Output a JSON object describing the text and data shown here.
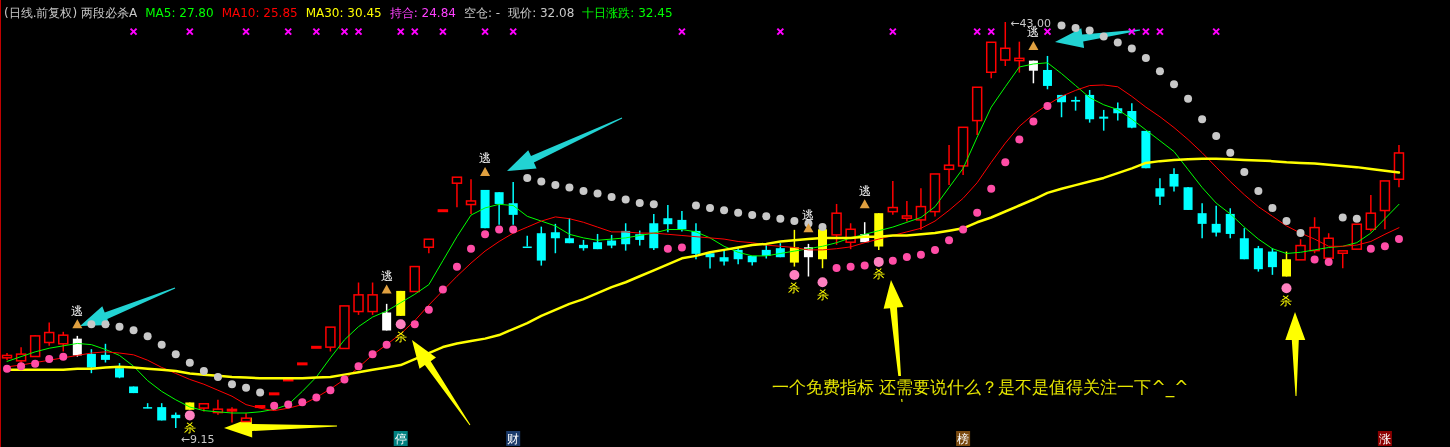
{
  "chart_data": {
    "type": "candlestick",
    "title": "(日线.前复权) 两段必杀A",
    "legend": "top left",
    "tick_labels": "x",
    "categories": [
      null,
      null,
      null,
      null,
      null,
      null,
      null,
      null,
      null,
      null,
      null,
      null,
      null,
      null,
      null,
      null,
      null,
      null,
      null,
      null,
      null,
      null,
      null,
      null,
      null,
      null,
      null,
      null,
      "停",
      null,
      null,
      null,
      null,
      null,
      null,
      null,
      "财",
      null,
      null,
      null,
      null,
      null,
      null,
      null,
      null,
      null,
      null,
      null,
      null,
      null,
      null,
      null,
      null,
      null,
      null,
      null,
      null,
      null,
      null,
      null,
      null,
      null,
      null,
      null,
      null,
      null,
      null,
      null,
      "榜",
      null,
      null,
      null,
      null,
      null,
      null,
      null,
      null,
      null,
      null,
      null,
      null,
      null,
      null,
      null,
      null,
      null,
      null,
      null,
      null,
      null,
      null,
      null,
      null,
      null,
      null,
      null,
      null,
      null,
      "涨",
      null
    ],
    "ohlc": [
      [
        15.0,
        15.4,
        14.8,
        15.2
      ],
      [
        14.75,
        15.89,
        14.56,
        15.31
      ],
      [
        15.11,
        16.9,
        15.1,
        16.83
      ],
      [
        16.28,
        17.94,
        16.0,
        17.11
      ],
      [
        16.17,
        17.17,
        15.53,
        16.89
      ],
      [
        16.6,
        16.83,
        15.1,
        15.2
      ],
      [
        15.33,
        15.72,
        13.72,
        14.19
      ],
      [
        15.25,
        16.17,
        14.61,
        14.83
      ],
      [
        14.14,
        14.56,
        13.3,
        13.36
      ],
      [
        12.61,
        12.61,
        12.06,
        12.06
      ],
      [
        10.89,
        11.22,
        10.8,
        10.8
      ],
      [
        10.89,
        11.22,
        9.78,
        9.78
      ],
      [
        10.25,
        10.44,
        9.15,
        9.97
      ],
      [
        11.28,
        11.28,
        10.67,
        10.67
      ],
      [
        10.81,
        11.17,
        10.53,
        11.17
      ],
      [
        10.44,
        11.5,
        10.25,
        10.72
      ],
      [
        10.6,
        10.89,
        9.61,
        10.7
      ],
      [
        9.69,
        10.39,
        9.69,
        9.97
      ],
      [
        10.98,
        11.0,
        10.98,
        11.0
      ],
      [
        12.04,
        12.06,
        12.04,
        12.06
      ],
      [
        13.2,
        13.22,
        13.2,
        13.22
      ],
      [
        14.54,
        14.56,
        14.54,
        14.56
      ],
      [
        15.92,
        15.94,
        15.92,
        15.94
      ],
      [
        15.89,
        17.56,
        15.53,
        17.56
      ],
      [
        15.78,
        19.33,
        15.78,
        19.33
      ],
      [
        18.86,
        21.28,
        18.58,
        20.25
      ],
      [
        18.86,
        21.28,
        18.58,
        20.25
      ],
      [
        18.78,
        19.5,
        17.28,
        17.28
      ],
      [
        20.58,
        20.58,
        18.5,
        18.5
      ],
      [
        20.53,
        22.61,
        20.53,
        22.61
      ],
      [
        24.22,
        24.89,
        23.72,
        24.89
      ],
      [
        27.31,
        27.33,
        27.31,
        27.33
      ],
      [
        29.56,
        30.06,
        27.56,
        30.06
      ],
      [
        27.78,
        29.89,
        27.0,
        28.08
      ],
      [
        29.0,
        29.0,
        25.81,
        25.81
      ],
      [
        28.81,
        28.81,
        26.1,
        27.83
      ],
      [
        27.89,
        29.67,
        26.1,
        26.92
      ],
      [
        24.28,
        25.17,
        24.28,
        24.28
      ],
      [
        25.39,
        25.94,
        22.69,
        23.11
      ],
      [
        25.47,
        26.17,
        23.72,
        24.97
      ],
      [
        24.97,
        26.64,
        24.56,
        24.56
      ],
      [
        24.42,
        24.83,
        23.94,
        24.14
      ],
      [
        24.64,
        25.33,
        24.06,
        24.06
      ],
      [
        24.78,
        25.25,
        24.14,
        24.36
      ],
      [
        25.58,
        26.22,
        23.94,
        24.47
      ],
      [
        25.31,
        25.61,
        24.36,
        24.83
      ],
      [
        26.22,
        27.0,
        24.0,
        24.14
      ],
      [
        26.64,
        27.75,
        25.47,
        26.14
      ],
      [
        26.5,
        27.25,
        25.53,
        25.72
      ],
      [
        25.58,
        26.22,
        23.22,
        23.67
      ],
      [
        23.72,
        23.81,
        22.44,
        23.39
      ],
      [
        23.39,
        24.0,
        22.69,
        23.03
      ],
      [
        24.0,
        24.14,
        22.81,
        23.22
      ],
      [
        23.5,
        23.5,
        22.69,
        22.97
      ],
      [
        24.0,
        24.42,
        23.28,
        23.5
      ],
      [
        24.14,
        24.56,
        23.39,
        23.39
      ],
      [
        24.22,
        25.67,
        22.61,
        22.94
      ],
      [
        24.22,
        24.5,
        21.78,
        23.39
      ],
      [
        25.72,
        25.72,
        22.47,
        23.22
      ],
      [
        25.25,
        27.83,
        24.42,
        27.06
      ],
      [
        24.64,
        26.22,
        24.06,
        25.72
      ],
      [
        25.31,
        26.31,
        24.64,
        24.64
      ],
      [
        27.06,
        27.06,
        24.0,
        24.28
      ],
      [
        27.19,
        29.75,
        26.92,
        27.53
      ],
      [
        26.64,
        28.08,
        26.36,
        26.83
      ],
      [
        26.5,
        29.14,
        25.67,
        27.61
      ],
      [
        27.19,
        30.33,
        26.78,
        30.33
      ],
      [
        30.72,
        32.75,
        29.42,
        31.06
      ],
      [
        31.0,
        34.22,
        30.25,
        34.22
      ],
      [
        34.78,
        37.56,
        33.58,
        37.56
      ],
      [
        38.81,
        41.31,
        38.31,
        41.31
      ],
      [
        39.83,
        43.0,
        39.33,
        40.81
      ],
      [
        39.78,
        41.36,
        38.78,
        39.97
      ],
      [
        39.78,
        39.78,
        37.89,
        38.94
      ],
      [
        39.0,
        40.17,
        37.39,
        37.67
      ],
      [
        36.92,
        36.92,
        35.06,
        36.31
      ],
      [
        36.5,
        36.78,
        35.61,
        36.36
      ],
      [
        36.92,
        37.33,
        34.61,
        34.89
      ],
      [
        35.11,
        35.67,
        33.94,
        34.94
      ],
      [
        35.81,
        36.28,
        34.78,
        35.39
      ],
      [
        35.58,
        36.22,
        34.14,
        34.19
      ],
      [
        33.92,
        33.92,
        30.81,
        30.81
      ],
      [
        29.14,
        29.97,
        27.75,
        28.44
      ],
      [
        30.33,
        30.81,
        28.86,
        29.28
      ],
      [
        29.22,
        29.25,
        27.33,
        27.33
      ],
      [
        27.06,
        27.89,
        24.97,
        26.17
      ],
      [
        26.17,
        27.67,
        25.11,
        25.44
      ],
      [
        27.0,
        27.47,
        24.97,
        25.33
      ],
      [
        24.97,
        25.81,
        23.22,
        23.22
      ],
      [
        24.14,
        24.33,
        22.19,
        22.39
      ],
      [
        23.86,
        24.14,
        21.92,
        22.56
      ],
      [
        23.22,
        23.86,
        21.78,
        21.78
      ],
      [
        23.17,
        24.89,
        23.17,
        24.36
      ],
      [
        23.94,
        26.72,
        23.72,
        25.86
      ],
      [
        23.31,
        25.39,
        23.3,
        24.97
      ],
      [
        23.72,
        23.92,
        22.47,
        23.92
      ],
      [
        24.06,
        26.14,
        24.06,
        26.14
      ],
      [
        25.72,
        28.58,
        25.53,
        27.06
      ],
      [
        27.28,
        29.75,
        25.72,
        29.75
      ],
      [
        29.89,
        32.75,
        29.22,
        32.08
      ]
    ],
    "colors": [
      "#ff0000",
      "#ff0000",
      "#ff0000",
      "#ff0000",
      "#ff0000",
      "#ffffff",
      "#00ffff",
      "#00ffff",
      "#00ffff",
      "#00ffff",
      "#00ffff",
      "#00ffff",
      "#00ffff",
      "#ffff00",
      "#ff0000",
      "#ff0000",
      "#ff0000",
      "#ff0000",
      "#ff0000",
      "#ff0000",
      "#ff0000",
      "#ff0000",
      "#ff0000",
      "#ff0000",
      "#ff0000",
      "#ff0000",
      "#ff0000",
      "#ffffff",
      "#ffff00",
      "#ff0000",
      "#ff0000",
      "#ff0000",
      "#ff0000",
      "#ff0000",
      "#00ffff",
      "#00ffff",
      "#00ffff",
      "#00ffff",
      "#00ffff",
      "#00ffff",
      "#00ffff",
      "#00ffff",
      "#00ffff",
      "#00ffff",
      "#00ffff",
      "#00ffff",
      "#00ffff",
      "#00ffff",
      "#00ffff",
      "#00ffff",
      "#00ffff",
      "#00ffff",
      "#00ffff",
      "#00ffff",
      "#00ffff",
      "#00ffff",
      "#ffff00",
      "#ffffff",
      "#ffff00",
      "#ff0000",
      "#ff0000",
      "#ffffff",
      "#ffff00",
      "#ff0000",
      "#ff0000",
      "#ff0000",
      "#ff0000",
      "#ff0000",
      "#ff0000",
      "#ff0000",
      "#ff0000",
      "#ff0000",
      "#ff0000",
      "#ffffff",
      "#00ffff",
      "#00ffff",
      "#00ffff",
      "#00ffff",
      "#00ffff",
      "#00ffff",
      "#00ffff",
      "#00ffff",
      "#00ffff",
      "#00ffff",
      "#00ffff",
      "#00ffff",
      "#00ffff",
      "#00ffff",
      "#00ffff",
      "#00ffff",
      "#00ffff",
      "#ffff00",
      "#ff0000",
      "#ff0000",
      "#ff0000",
      "#ff0000",
      "#ff0000",
      "#ff0000",
      "#ff0000",
      "#ff0000"
    ],
    "series": [
      {
        "type": "line",
        "name": "MA5: 27.80",
        "color": "#00ff00",
        "values": [
          14.7,
          15.1,
          15.5,
          15.8,
          16.0,
          16.2,
          16.1,
          15.7,
          15.2,
          14.3,
          13.1,
          12.2,
          11.5,
          10.9,
          10.6,
          10.5,
          10.4,
          10.4,
          10.5,
          10.7,
          11.1,
          12.2,
          13.4,
          15.0,
          16.5,
          17.6,
          18.4,
          18.9,
          19.6,
          20.3,
          21.1,
          23.1,
          25.1,
          26.9,
          27.5,
          27.8,
          27.7,
          26.8,
          26.4,
          26.0,
          25.3,
          25.0,
          24.8,
          24.9,
          25.0,
          25.2,
          25.4,
          25.7,
          25.7,
          25.5,
          25.0,
          24.3,
          23.8,
          23.5,
          23.5,
          23.7,
          23.9,
          24.1,
          24.3,
          24.6,
          25.0,
          25.3,
          25.6,
          25.9,
          26.3,
          26.7,
          27.6,
          29.2,
          30.8,
          33.4,
          35.9,
          37.6,
          39.25,
          39.5,
          39.6,
          38.7,
          37.7,
          36.7,
          36.1,
          35.7,
          34.9,
          34.0,
          33.1,
          32.2,
          30.7,
          29.2,
          27.9,
          27.0,
          25.9,
          24.9,
          24.1,
          23.7,
          23.8,
          24.0,
          24.2,
          24.3,
          24.6,
          25.4,
          26.6,
          27.8
        ]
      },
      {
        "type": "line",
        "name": "MA10: 25.85",
        "color": "#ff0000",
        "values": [
          14.25,
          14.4,
          14.6,
          14.8,
          15.0,
          15.2,
          15.4,
          15.5,
          15.4,
          15.25,
          14.8,
          14.2,
          13.7,
          13.2,
          12.8,
          12.3,
          11.8,
          11.1,
          10.8,
          10.6,
          10.8,
          11.1,
          11.7,
          12.4,
          13.2,
          14.2,
          15.25,
          16.1,
          17.0,
          18.1,
          19.4,
          20.6,
          21.8,
          22.9,
          23.9,
          24.7,
          25.4,
          25.9,
          26.4,
          26.75,
          26.6,
          26.3,
          25.9,
          25.5,
          25.5,
          25.4,
          25.4,
          25.3,
          25.2,
          25.1,
          25.0,
          24.9,
          24.7,
          24.6,
          24.4,
          24.3,
          24.2,
          24.0,
          24.0,
          24.1,
          24.25,
          24.6,
          24.9,
          25.2,
          25.5,
          25.8,
          26.4,
          27.3,
          28.3,
          29.6,
          31.3,
          32.9,
          34.3,
          35.3,
          36.1,
          36.8,
          37.3,
          37.7,
          37.75,
          37.6,
          36.8,
          35.9,
          35.1,
          34.2,
          33.2,
          32.1,
          30.9,
          29.7,
          28.6,
          27.6,
          26.8,
          26.0,
          25.4,
          24.9,
          24.3,
          24.3,
          24.4,
          24.7,
          25.3,
          25.85
        ]
      },
      {
        "type": "line",
        "name": "MA30: 30.45",
        "color": "#ffff00",
        "values": [
          14.0,
          14.0,
          14.0,
          14.0,
          14.0,
          14.1,
          14.1,
          14.2,
          14.25,
          14.2,
          14.1,
          14.0,
          13.9,
          13.7,
          13.6,
          13.5,
          13.4,
          13.35,
          13.3,
          13.3,
          13.3,
          13.3,
          13.35,
          13.4,
          13.6,
          13.8,
          14.0,
          14.2,
          14.4,
          14.9,
          15.4,
          15.9,
          16.2,
          16.4,
          16.6,
          16.9,
          17.4,
          17.9,
          18.5,
          19.0,
          19.5,
          19.9,
          20.4,
          20.9,
          21.3,
          21.8,
          22.3,
          22.8,
          23.3,
          23.5,
          23.8,
          24.0,
          24.2,
          24.4,
          24.5,
          24.7,
          24.8,
          24.9,
          25.0,
          25.0,
          25.0,
          25.1,
          25.1,
          25.2,
          25.2,
          25.3,
          25.4,
          25.6,
          25.8,
          26.3,
          26.7,
          27.2,
          27.7,
          28.2,
          28.75,
          29.1,
          29.4,
          29.7,
          30.0,
          30.4,
          30.8,
          31.25,
          31.4,
          31.5,
          31.55,
          31.6,
          31.6,
          31.55,
          31.5,
          31.45,
          31.4,
          31.3,
          31.25,
          31.2,
          31.1,
          31.0,
          30.9,
          30.75,
          30.6,
          30.45
        ]
      },
      {
        "type": "scatter",
        "marker": "circle",
        "color": "#c8c8c8",
        "values": [
          null,
          null,
          null,
          null,
          null,
          null,
          17.8,
          17.8,
          17.6,
          17.3,
          16.8,
          16.1,
          15.3,
          14.6,
          13.9,
          13.4,
          12.8,
          12.5,
          12.1,
          null,
          null,
          null,
          null,
          null,
          null,
          null,
          null,
          null,
          null,
          null,
          null,
          null,
          null,
          null,
          null,
          null,
          null,
          30.0,
          29.7,
          29.4,
          29.2,
          28.9,
          28.7,
          28.4,
          28.2,
          27.9,
          27.8,
          null,
          null,
          27.7,
          27.5,
          27.3,
          27.1,
          26.9,
          26.8,
          26.6,
          26.4,
          26.2,
          25.9,
          null,
          null,
          null,
          null,
          null,
          null,
          null,
          null,
          null,
          null,
          null,
          null,
          null,
          null,
          null,
          null,
          42.7,
          42.5,
          42.3,
          41.8,
          41.3,
          40.8,
          40.0,
          38.9,
          37.8,
          36.6,
          34.9,
          33.5,
          32.1,
          30.5,
          28.9,
          27.5,
          26.4,
          25.4,
          null,
          null,
          26.7,
          26.6,
          null,
          null,
          null
        ]
      },
      {
        "type": "scatter",
        "marker": "circle",
        "color": "#ff4da6",
        "values": [
          14.1,
          14.3,
          14.5,
          14.9,
          15.1,
          null,
          null,
          null,
          null,
          null,
          null,
          null,
          null,
          null,
          null,
          null,
          null,
          null,
          null,
          11.0,
          11.1,
          11.3,
          11.7,
          12.3,
          13.2,
          14.3,
          15.3,
          16.1,
          null,
          17.8,
          19.0,
          20.7,
          22.6,
          24.1,
          25.3,
          25.7,
          25.7,
          null,
          null,
          null,
          null,
          null,
          null,
          null,
          null,
          null,
          null,
          24.1,
          24.2,
          null,
          null,
          null,
          null,
          null,
          null,
          null,
          null,
          null,
          null,
          22.5,
          22.6,
          22.7,
          null,
          23.1,
          23.4,
          23.6,
          24.0,
          24.8,
          25.7,
          27.1,
          29.1,
          31.3,
          33.2,
          34.7,
          36.0,
          null,
          null,
          null,
          null,
          null,
          null,
          null,
          null,
          null,
          null,
          null,
          null,
          null,
          null,
          null,
          null,
          null,
          null,
          23.2,
          23.0,
          null,
          null,
          24.1,
          24.3,
          24.9
        ]
      },
      {
        "type": "scatter",
        "marker": "cross",
        "color": "#ff00ff",
        "values": [
          null,
          null,
          null,
          null,
          null,
          null,
          null,
          null,
          null,
          42.2,
          null,
          null,
          null,
          42.2,
          null,
          null,
          null,
          42.2,
          null,
          null,
          42.2,
          null,
          42.2,
          null,
          42.2,
          42.2,
          null,
          null,
          42.2,
          42.2,
          null,
          42.2,
          null,
          null,
          42.2,
          null,
          42.2,
          null,
          null,
          null,
          null,
          null,
          null,
          null,
          null,
          null,
          null,
          null,
          42.2,
          null,
          null,
          null,
          null,
          null,
          null,
          42.2,
          null,
          null,
          null,
          null,
          null,
          null,
          null,
          42.2,
          null,
          null,
          null,
          null,
          null,
          42.2,
          42.2,
          null,
          null,
          null,
          42.2,
          null,
          null,
          null,
          null,
          null,
          42.2,
          42.2,
          42.2,
          null,
          null,
          null,
          42.2,
          null,
          null,
          null,
          null,
          null,
          null,
          null,
          null,
          null,
          null,
          null,
          null,
          null
        ]
      },
      {
        "type": "scatter",
        "marker": "triangle",
        "color": "#e0a040",
        "values": [
          null,
          null,
          null,
          null,
          null,
          17.8,
          null,
          null,
          null,
          null,
          null,
          null,
          null,
          null,
          null,
          null,
          null,
          null,
          null,
          null,
          null,
          null,
          null,
          null,
          null,
          null,
          null,
          20.7,
          null,
          null,
          null,
          null,
          null,
          null,
          30.5,
          null,
          null,
          null,
          null,
          null,
          null,
          null,
          null,
          null,
          null,
          null,
          null,
          null,
          null,
          null,
          null,
          null,
          null,
          null,
          null,
          null,
          null,
          25.8,
          null,
          null,
          null,
          27.8,
          null,
          null,
          null,
          null,
          null,
          null,
          null,
          null,
          null,
          null,
          null,
          41.0,
          null,
          null,
          null,
          null,
          null,
          null,
          null,
          null,
          null,
          null,
          null,
          null,
          null,
          null,
          null,
          null,
          null,
          null,
          null,
          null,
          null,
          null,
          null,
          null,
          null,
          null
        ],
        "value_labels": [
          null,
          null,
          null,
          null,
          null,
          "逃",
          null,
          null,
          null,
          null,
          null,
          null,
          null,
          null,
          null,
          null,
          null,
          null,
          null,
          null,
          null,
          null,
          null,
          null,
          null,
          null,
          null,
          "逃",
          null,
          null,
          null,
          null,
          null,
          null,
          "逃",
          null,
          null,
          null,
          null,
          null,
          null,
          null,
          null,
          null,
          null,
          null,
          null,
          null,
          null,
          null,
          null,
          null,
          null,
          null,
          null,
          null,
          null,
          "逃",
          null,
          null,
          null,
          "逃",
          null,
          null,
          null,
          null,
          null,
          null,
          null,
          null,
          null,
          null,
          null,
          "逃",
          null,
          null,
          null,
          null,
          null,
          null,
          null,
          null,
          null,
          null,
          null,
          null,
          null,
          null,
          null,
          null,
          null,
          null,
          null,
          null,
          null,
          null,
          null,
          null,
          null,
          null
        ]
      },
      {
        "type": "scatter",
        "marker": "circle",
        "color": "#ff80c0",
        "values": [
          null,
          null,
          null,
          null,
          null,
          null,
          null,
          null,
          null,
          null,
          null,
          null,
          null,
          10.2,
          null,
          null,
          null,
          null,
          null,
          null,
          null,
          null,
          null,
          null,
          null,
          null,
          null,
          null,
          17.8,
          null,
          null,
          null,
          null,
          null,
          null,
          null,
          null,
          null,
          null,
          null,
          null,
          null,
          null,
          null,
          null,
          null,
          null,
          null,
          null,
          null,
          null,
          null,
          null,
          null,
          null,
          null,
          21.9,
          null,
          21.3,
          null,
          null,
          null,
          23.0,
          null,
          null,
          null,
          null,
          null,
          null,
          null,
          null,
          null,
          null,
          null,
          null,
          null,
          null,
          null,
          null,
          null,
          null,
          null,
          null,
          null,
          null,
          null,
          null,
          null,
          null,
          null,
          null,
          20.8,
          null,
          null,
          null,
          null,
          null,
          null,
          null,
          null
        ],
        "value_labels": [
          null,
          null,
          null,
          null,
          null,
          null,
          null,
          null,
          null,
          null,
          null,
          null,
          null,
          "杀",
          null,
          null,
          null,
          null,
          null,
          null,
          null,
          null,
          null,
          null,
          null,
          null,
          null,
          null,
          "杀",
          null,
          null,
          null,
          null,
          null,
          null,
          null,
          null,
          null,
          null,
          null,
          null,
          null,
          null,
          null,
          null,
          null,
          null,
          null,
          null,
          null,
          null,
          null,
          null,
          null,
          null,
          null,
          "杀",
          null,
          "杀",
          null,
          null,
          null,
          "杀",
          null,
          null,
          null,
          null,
          null,
          null,
          null,
          null,
          null,
          null,
          null,
          null,
          null,
          null,
          null,
          null,
          null,
          null,
          null,
          null,
          null,
          null,
          null,
          null,
          null,
          null,
          null,
          null,
          "杀",
          null,
          null,
          null,
          null,
          null,
          null,
          null,
          null
        ]
      }
    ],
    "annotations": [
      "持合: 24.84",
      "空仓: -",
      "现价: 32.08",
      "十日涨跌: 32.45",
      "←43.00",
      "←9.15",
      "一个免费指标 还需要说什么？是不是值得关注一下^_^"
    ]
  }
}
